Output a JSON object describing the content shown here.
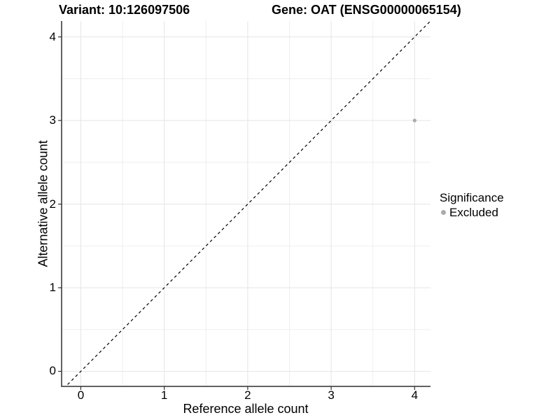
{
  "title": {
    "left": "Variant: 10:126097506",
    "right": "Gene: OAT (ENSG00000065154)"
  },
  "axes": {
    "x_label": "Reference allele count",
    "y_label": "Alternative allele count"
  },
  "legend": {
    "title": "Significance",
    "items": [
      {
        "label": "Excluded",
        "color": "#ababab"
      }
    ]
  },
  "colors": {
    "background": "#ffffff",
    "grid_major": "#e7e7e7",
    "grid_minor": "#ededed",
    "axis_line": "#2f2f2f",
    "tick_mark": "#333333",
    "identity_line": "#000000",
    "point": "#ababab"
  },
  "chart_data": {
    "type": "scatter",
    "title": "Variant: 10:126097506   Gene: OAT (ENSG00000065154)",
    "xlabel": "Reference allele count",
    "ylabel": "Alternative allele count",
    "xlim": [
      -0.23,
      4.19
    ],
    "ylim": [
      -0.18,
      4.19
    ],
    "x_ticks": [
      0,
      1,
      2,
      3,
      4
    ],
    "y_ticks": [
      0,
      1,
      2,
      3,
      4
    ],
    "x_minor_ticks": [
      0.5,
      1.5,
      2.5,
      3.5
    ],
    "y_minor_ticks": [
      0.5,
      1.5,
      2.5,
      3.5
    ],
    "grid": true,
    "legend_position": "right",
    "series": [
      {
        "name": "Excluded",
        "color": "#ababab",
        "points": [
          {
            "x": 4,
            "y": 3
          }
        ]
      }
    ],
    "reference_line": {
      "kind": "identity y=x",
      "style": "dashed",
      "color": "#000000",
      "from": [
        -0.3,
        -0.3
      ],
      "to": [
        4.3,
        4.3
      ]
    }
  }
}
